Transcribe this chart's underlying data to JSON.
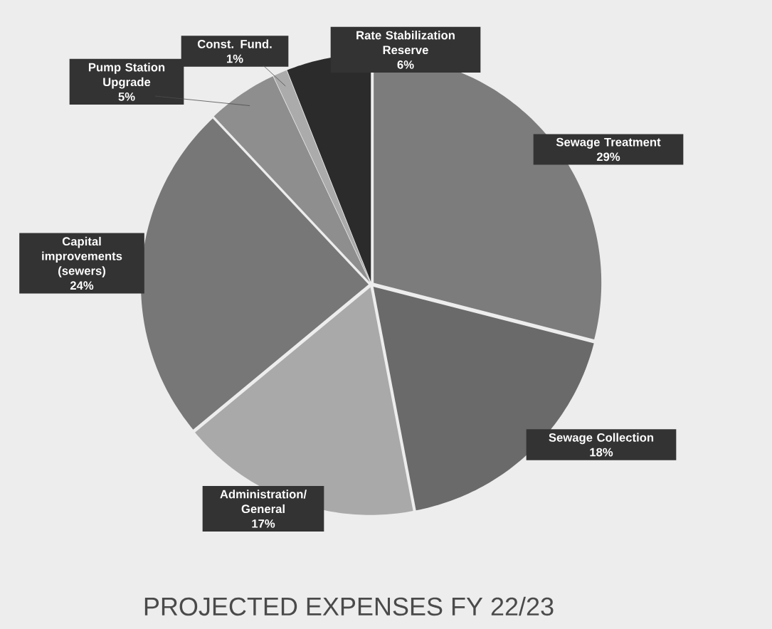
{
  "chart_data": {
    "type": "pie",
    "title": "PROJECTED EXPENSES FY 22/23",
    "categories": [
      "Sewage Treatment",
      "Sewage Collection",
      "Administration/ General",
      "Capital improvements (sewers)",
      "Pump Station Upgrade",
      "Const. Fund.",
      "Rate Stabilization Reserve"
    ],
    "values": [
      29,
      18,
      17,
      24,
      5,
      1,
      6
    ],
    "value_labels": [
      "29%",
      "18%",
      "17%",
      "24%",
      "5%",
      "1%",
      "6%"
    ],
    "colors": [
      "#7c7c7c",
      "#6a6a6a",
      "#a9a9a9",
      "#777777",
      "#8e8e8e",
      "#ababab",
      "#2b2b2b"
    ]
  }
}
